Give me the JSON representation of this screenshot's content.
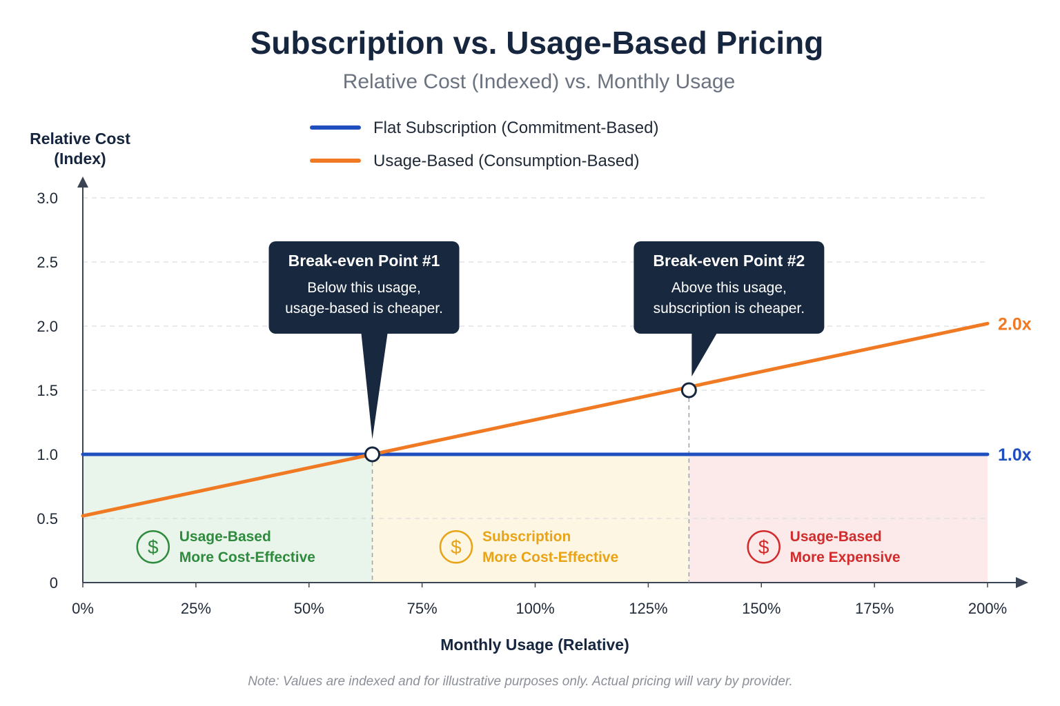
{
  "title": "Subscription vs. Usage-Based Pricing",
  "subtitle": "Relative Cost (Indexed) vs. Monthly Usage",
  "note": "Note: Values are indexed and for illustrative purposes only. Actual pricing will vary by provider.",
  "colors": {
    "subscription": "#1f4fbf",
    "usage": "#f07a24",
    "green": "#2e8b3e",
    "amber": "#e8a316",
    "red": "#d12b2b",
    "callout_bg": "#17283f",
    "zone_green": "#e9f5ea",
    "zone_amber": "#fdf6e3",
    "zone_red": "#fceaea"
  },
  "chart_data": {
    "type": "line",
    "title": "Subscription vs. Usage-Based Pricing",
    "subtitle": "Relative Cost (Indexed) vs. Monthly Usage",
    "xlabel": "Monthly Usage (Relative)",
    "ylabel_lines": [
      "Relative Cost",
      "(Index)"
    ],
    "xlim": [
      0,
      200
    ],
    "ylim": [
      0,
      3.0
    ],
    "x_ticks": [
      0,
      25,
      50,
      75,
      100,
      125,
      150,
      175,
      200
    ],
    "x_tick_labels": [
      "0%",
      "25%",
      "50%",
      "75%",
      "100%",
      "125%",
      "150%",
      "175%",
      "200%"
    ],
    "y_ticks": [
      0,
      0.5,
      1.0,
      1.5,
      2.0,
      2.5,
      3.0
    ],
    "y_tick_labels": [
      "0",
      "0.5",
      "1.0",
      "1.5",
      "2.0",
      "2.5",
      "3.0"
    ],
    "grid": "horizontal dashed",
    "legend_position": "top-center",
    "series": [
      {
        "name": "Flat Subscription (Commitment-Based)",
        "color": "#1f4fbf",
        "x": [
          0,
          200
        ],
        "y": [
          1.0,
          1.0
        ],
        "end_label": "1.0x"
      },
      {
        "name": "Usage-Based (Consumption-Based)",
        "color": "#f07a24",
        "x": [
          0,
          200
        ],
        "y": [
          0.52,
          2.02
        ],
        "end_label": "2.0x"
      }
    ],
    "annotations": [
      {
        "title": "Break-even Point #1",
        "lines": [
          "Below this usage,",
          "usage-based is cheaper."
        ],
        "x": 64,
        "y": 1.0
      },
      {
        "title": "Break-even Point #2",
        "lines": [
          "Above this usage,",
          "subscription is cheaper."
        ],
        "x": 134,
        "y": 1.5
      }
    ],
    "regions": [
      {
        "x_start": 0,
        "x_end": 64,
        "y_top": 1.0,
        "color": "#2e8b3e",
        "lines": [
          "Usage-Based",
          "More Cost-Effective"
        ]
      },
      {
        "x_start": 64,
        "x_end": 134,
        "y_top": 1.0,
        "color": "#e8a316",
        "lines": [
          "Subscription",
          "More Cost-Effective"
        ]
      },
      {
        "x_start": 134,
        "x_end": 200,
        "y_top": 1.0,
        "color": "#d12b2b",
        "lines": [
          "Usage-Based",
          "More Expensive"
        ]
      }
    ]
  }
}
